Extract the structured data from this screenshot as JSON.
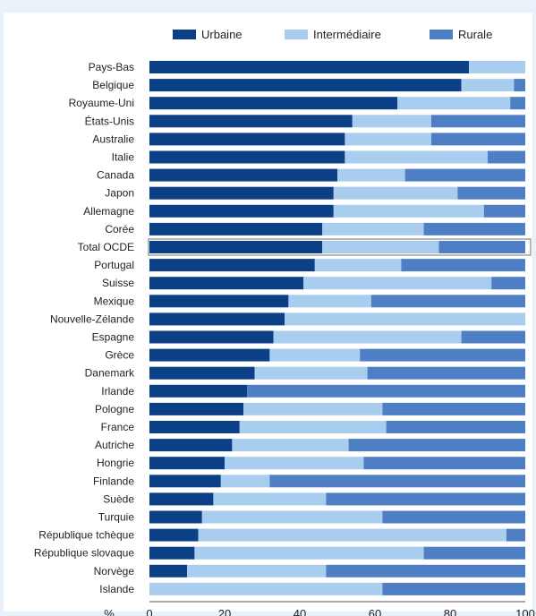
{
  "chart_data": {
    "type": "bar",
    "orientation": "horizontal",
    "stacked": true,
    "categories": [
      "Pays-Bas",
      "Belgique",
      "Royaume-Uni",
      "États-Unis",
      "Australie",
      "Italie",
      "Canada",
      "Japon",
      "Allemagne",
      "Corée",
      "Total OCDE",
      "Portugal",
      "Suisse",
      "Mexique",
      "Nouvelle-Zélande",
      "Espagne",
      "Grèce",
      "Danemark",
      "Irlande",
      "Pologne",
      "France",
      "Autriche",
      "Hongrie",
      "Finlande",
      "Suède",
      "Turquie",
      "République tchèque",
      "République slovaque",
      "Norvège",
      "Islande"
    ],
    "series": [
      {
        "name": "Urbaine",
        "color": "#0b3f86",
        "values": [
          85,
          83,
          66,
          54,
          52,
          52,
          50,
          49,
          49,
          46,
          46,
          44,
          41,
          37,
          36,
          33,
          32,
          28,
          26,
          25,
          24,
          22,
          20,
          19,
          17,
          14,
          13,
          12,
          10,
          0
        ]
      },
      {
        "name": "Intermédiaire",
        "color": "#a9cdee",
        "values": [
          15,
          14,
          30,
          21,
          23,
          38,
          18,
          33,
          40,
          27,
          31,
          23,
          50,
          22,
          64,
          50,
          24,
          30,
          0,
          37,
          39,
          31,
          37,
          13,
          30,
          48,
          82,
          61,
          37,
          62
        ]
      },
      {
        "name": "Rurale",
        "color": "#4e7fc4",
        "values": [
          0,
          3,
          4,
          25,
          25,
          10,
          32,
          18,
          11,
          27,
          23,
          33,
          9,
          41,
          0,
          17,
          44,
          42,
          74,
          38,
          37,
          47,
          43,
          68,
          53,
          38,
          5,
          27,
          53,
          38
        ]
      }
    ],
    "xlabel": "%",
    "xlim": [
      0,
      100
    ],
    "xticks": [
      0,
      20,
      40,
      60,
      80,
      100
    ],
    "xtick_labels": [
      "0",
      "20",
      "40",
      "60",
      "80",
      "100"
    ],
    "legend_position": "top",
    "highlight_category": "Total OCDE",
    "grid": false
  }
}
